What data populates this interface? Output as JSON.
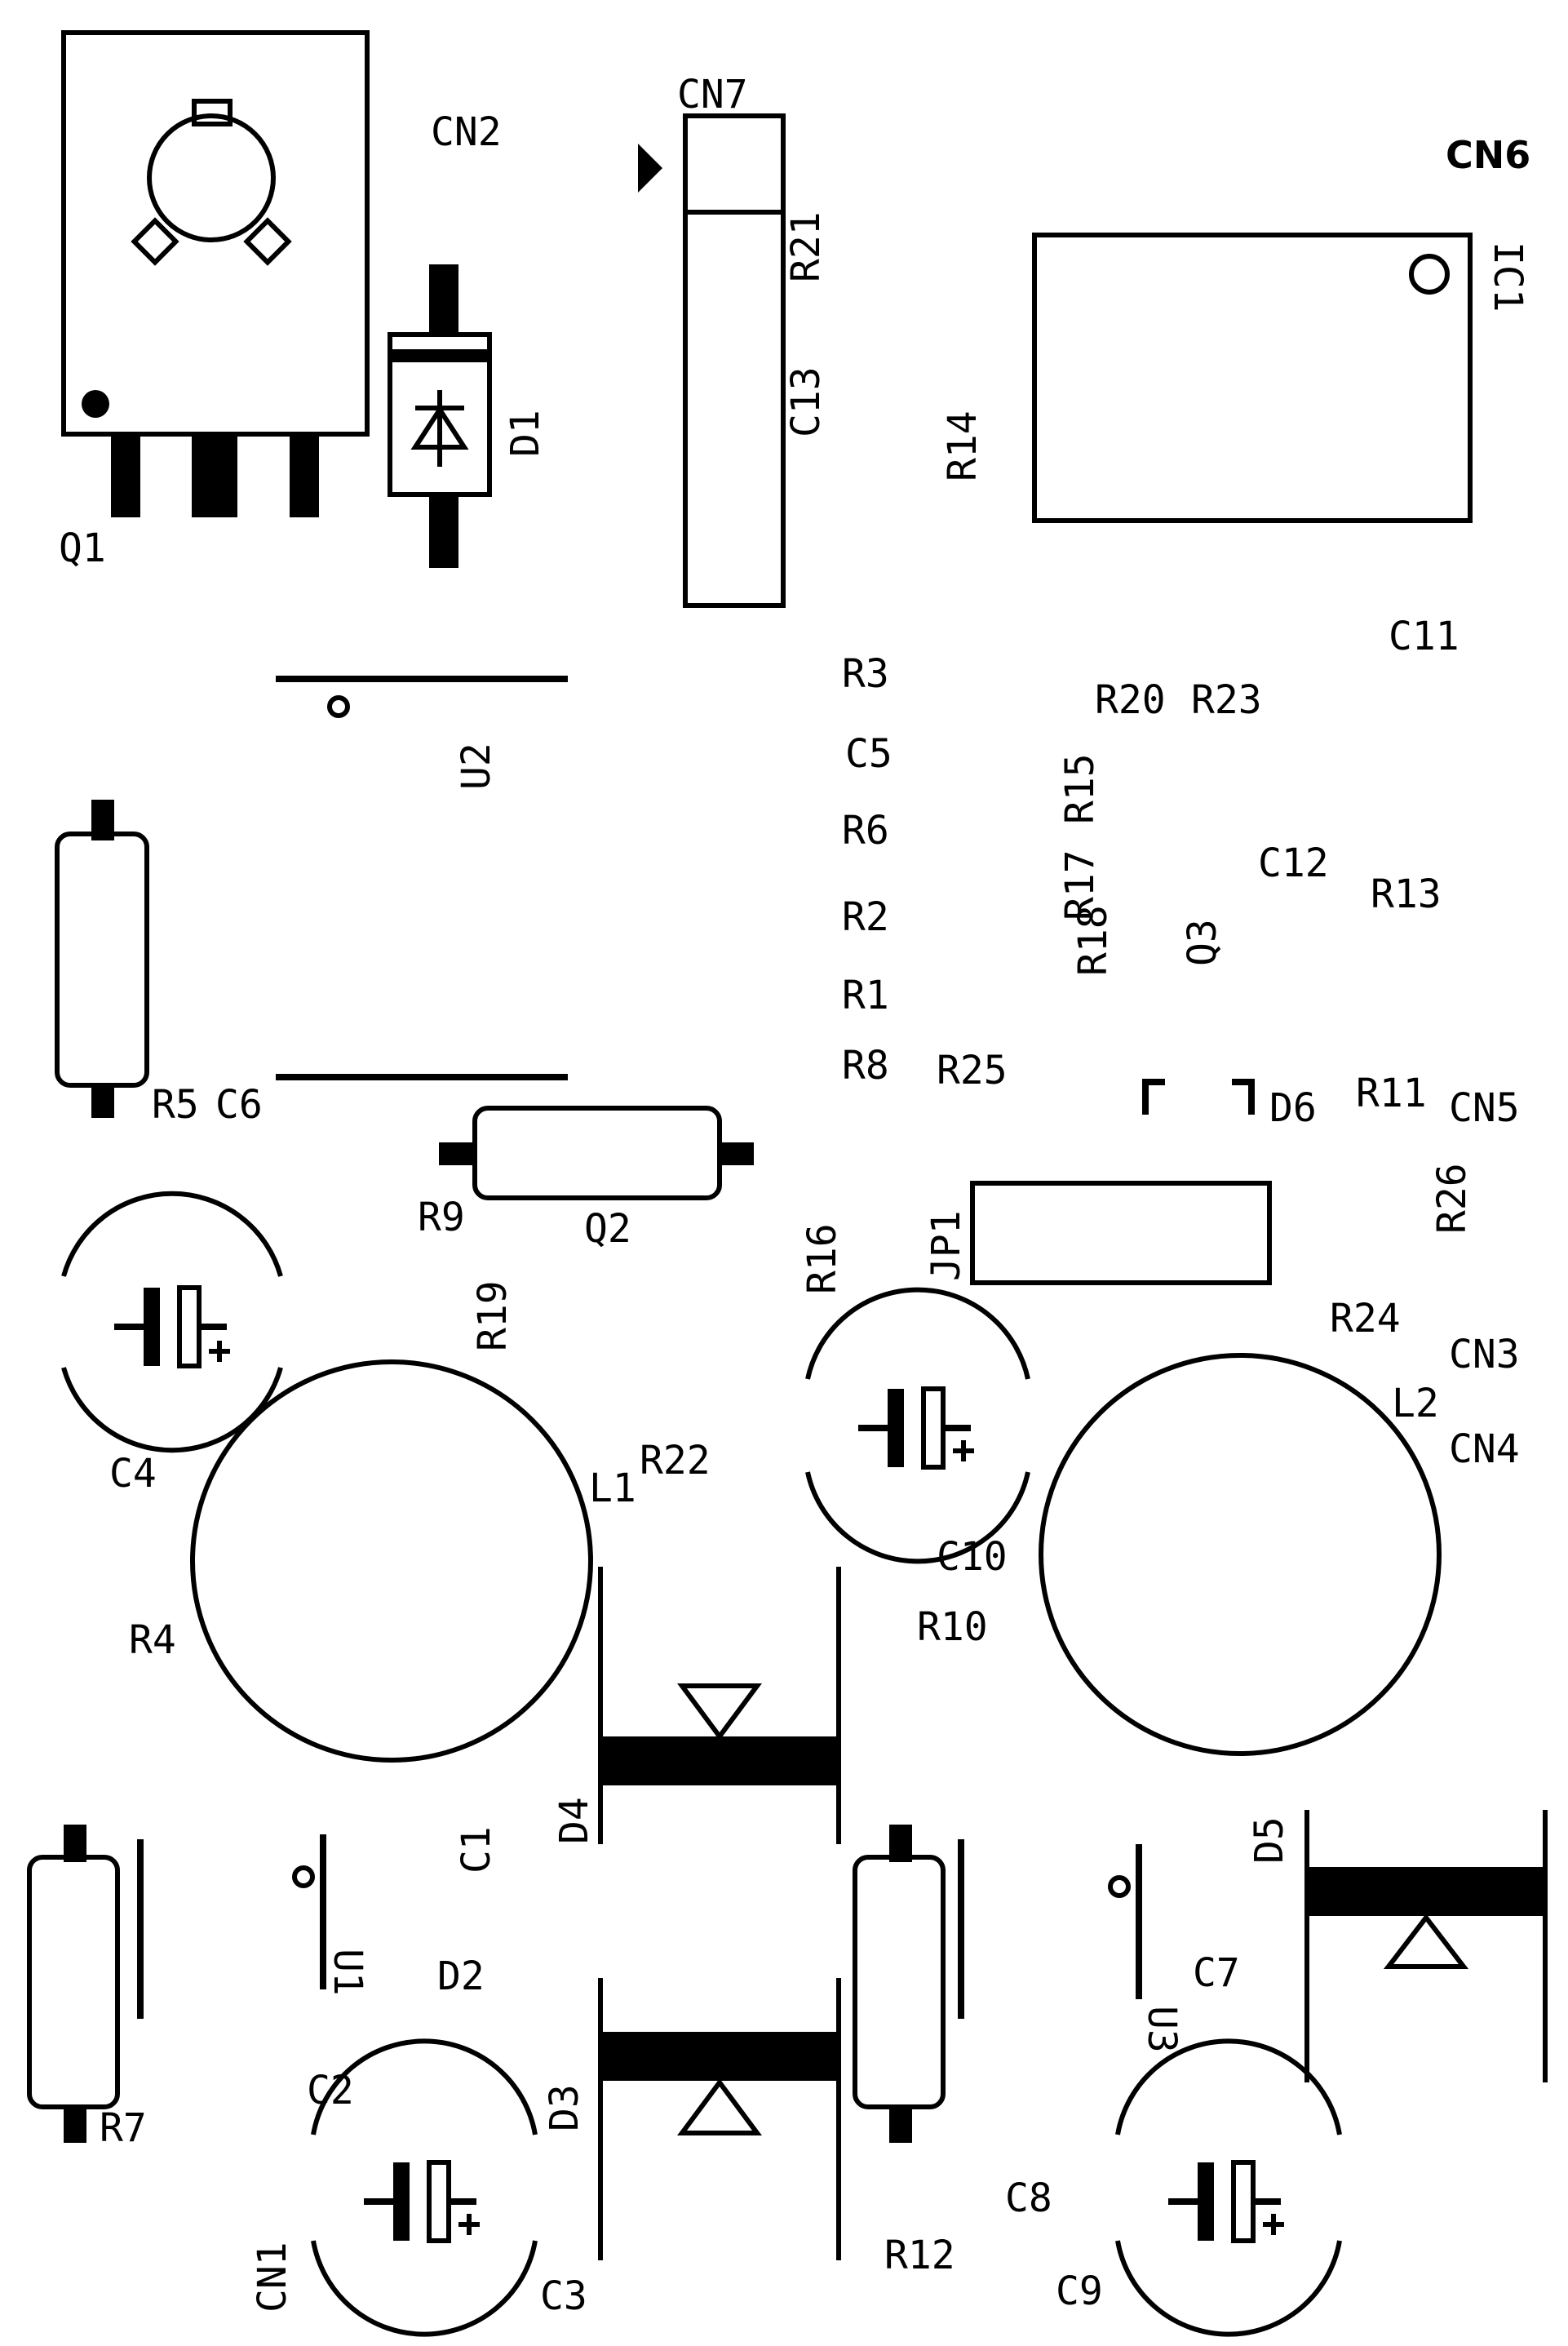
{
  "labels": {
    "Q1": "Q1",
    "CN2": "CN2",
    "CN7": "CN7",
    "CN6": "CN6",
    "D1": "D1",
    "R21": "R21",
    "C13": "C13",
    "R14": "R14",
    "IC1": "IC1",
    "C11": "C11",
    "R3": "R3",
    "U2": "U2",
    "C5": "C5",
    "R20": "R20",
    "R23": "R23",
    "R15": "R15",
    "R6": "R6",
    "R17": "R17",
    "C12": "C12",
    "R13": "R13",
    "R2": "R2",
    "R18": "R18",
    "Q3": "Q3",
    "R1": "R1",
    "R8": "R8",
    "R25": "R25",
    "R5": "R5",
    "C6": "C6",
    "D6": "D6",
    "R11": "R11",
    "CN5": "CN5",
    "R26": "R26",
    "R9": "R9",
    "Q2": "Q2",
    "R16": "R16",
    "JP1": "JP1",
    "R19": "R19",
    "R24": "R24",
    "CN3": "CN3",
    "L2": "L2",
    "C4": "C4",
    "R22": "R22",
    "L1": "L1",
    "CN4": "CN4",
    "C10": "C10",
    "R4": "R4",
    "R10": "R10",
    "D4": "D4",
    "C1": "C1",
    "U1": "U1",
    "D5": "D5",
    "D2": "D2",
    "C7": "C7",
    "U3": "U3",
    "R7": "R7",
    "C2": "C2",
    "D3": "D3",
    "C8": "C8",
    "CN1": "CN1",
    "C3": "C3",
    "R12": "R12",
    "C9": "C9"
  },
  "colors": {
    "ink": "#000000",
    "background": "#ffffff"
  }
}
